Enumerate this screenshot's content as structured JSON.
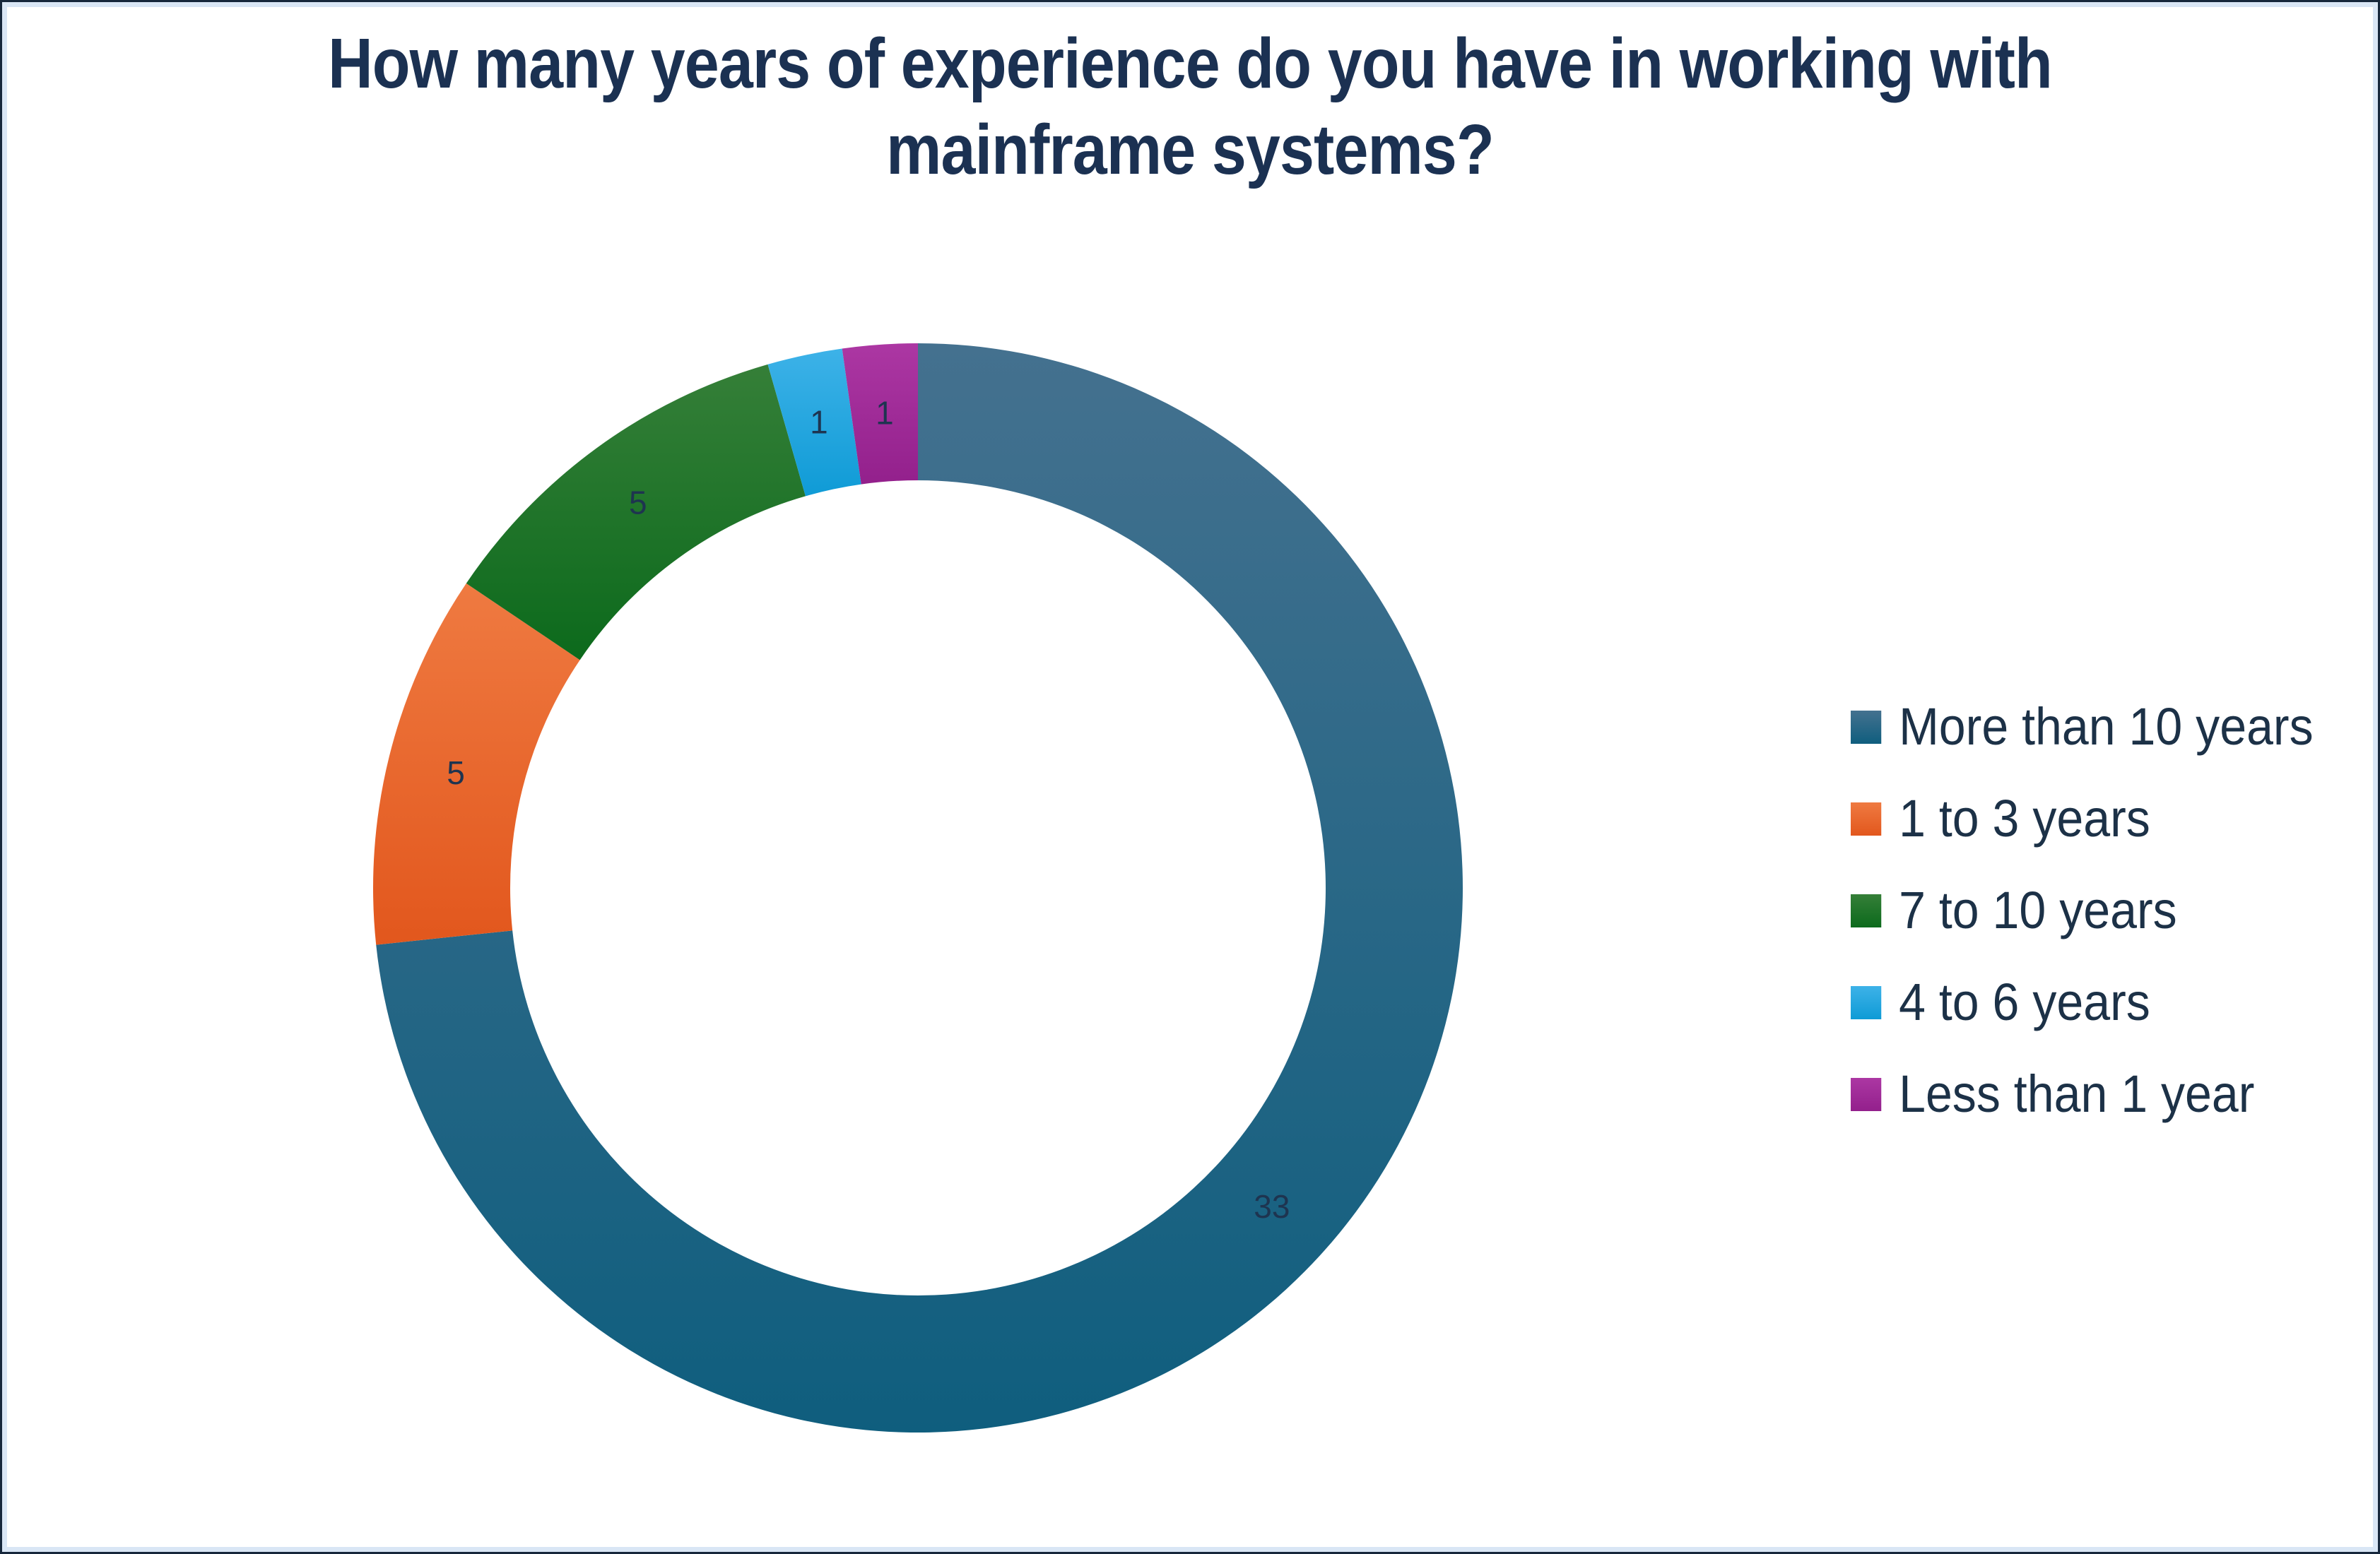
{
  "title": {
    "text": "How many years of experience do you have in working with mainframe systems?",
    "line1": "How many years of experience do you have in working with",
    "line2": "mainframe systems?"
  },
  "colors": {
    "background": "#FFFFFF",
    "frame_outer": "#16273B",
    "frame_inner": "#D9E6F5",
    "title_text": "#1B3152",
    "legend_text": "#1C3147",
    "data_label_text": "#1E3450"
  },
  "chart_data": {
    "type": "pie",
    "subtype": "donut",
    "title": "How many years of experience do you have in working with mainframe systems?",
    "total": 45,
    "start_angle_deg": 0,
    "direction": "clockwise",
    "legend_position": "right",
    "data_labels": true,
    "categories": [
      "More than 10 years",
      "1 to 3 years",
      "7 to 10 years",
      "4 to 6 years",
      "Less than 1 year"
    ],
    "values": [
      33,
      5,
      5,
      1,
      1
    ],
    "segments": [
      {
        "label": "More than 10 years",
        "value": 33,
        "color_light": "#44718F",
        "color_dark": "#0F5E7E"
      },
      {
        "label": "1 to 3 years",
        "value": 5,
        "color_light": "#EF7A41",
        "color_dark": "#E2571D"
      },
      {
        "label": "7 to 10 years",
        "value": 5,
        "color_light": "#357F38",
        "color_dark": "#0C6A1C"
      },
      {
        "label": "4 to 6 years",
        "value": 1,
        "color_light": "#3DB2E8",
        "color_dark": "#0F9BD6"
      },
      {
        "label": "Less than 1 year",
        "value": 1,
        "color_light": "#AC37A3",
        "color_dark": "#93208C"
      }
    ]
  }
}
